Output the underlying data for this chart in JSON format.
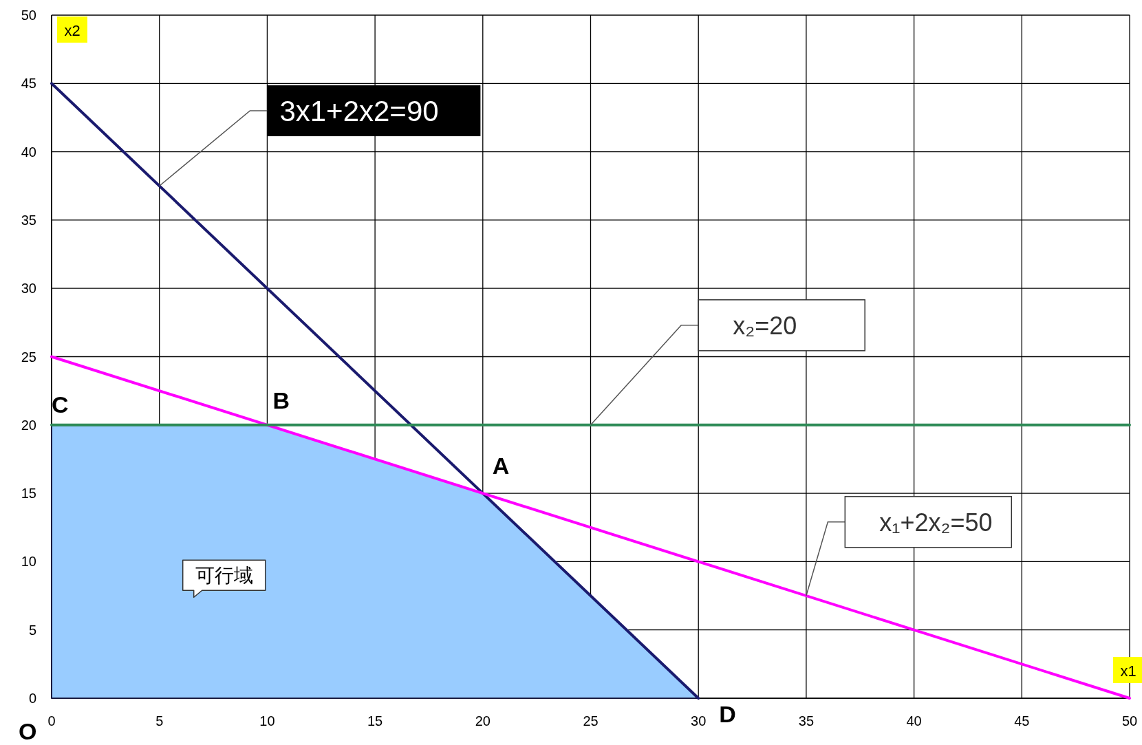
{
  "chart_data": {
    "type": "line",
    "xlabel": "x1",
    "ylabel": "x2",
    "xlim": [
      0,
      50
    ],
    "ylim": [
      0,
      50
    ],
    "xticks": [
      0,
      5,
      10,
      15,
      20,
      25,
      30,
      35,
      40,
      45,
      50
    ],
    "yticks": [
      0,
      5,
      10,
      15,
      20,
      25,
      30,
      35,
      40,
      45,
      50
    ],
    "grid": true,
    "marker": "none",
    "line_style": "solid",
    "series": [
      {
        "type": "area",
        "color": "#99ccff",
        "x": [
          0,
          10,
          20,
          30
        ],
        "values": [
          20,
          20,
          15,
          0
        ]
      },
      {
        "type": "line",
        "color": "#1a1a6e",
        "x": [
          0,
          30
        ],
        "values": [
          45,
          0
        ]
      },
      {
        "type": "line",
        "color": "#ff00ff",
        "x": [
          0,
          50
        ],
        "values": [
          25,
          0
        ]
      },
      {
        "type": "line",
        "color": "#2e8b57",
        "x": [
          0,
          50
        ],
        "values": [
          20,
          20
        ]
      }
    ],
    "annotations": [
      {
        "text": "3x1+2x2=90",
        "x": 5,
        "y": 37.5
      },
      "x₂=20",
      "x₁+2x₂=50",
      {
        "text": "A",
        "x": 20,
        "y": 15
      },
      {
        "text": "B",
        "x": 10,
        "y": 20
      },
      {
        "text": "C",
        "x": 0,
        "y": 20
      },
      {
        "text": "D",
        "x": 30,
        "y": 0
      },
      {
        "text": "O",
        "x": 0,
        "y": 0
      },
      "可行域"
    ]
  }
}
